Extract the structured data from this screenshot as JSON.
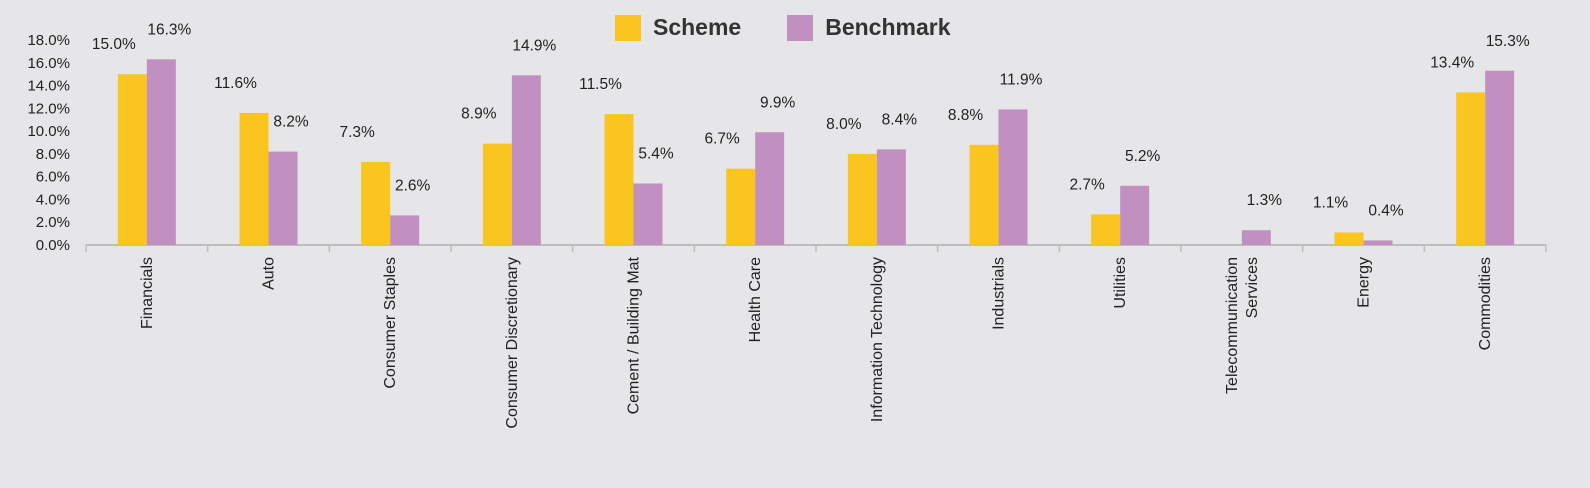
{
  "colors": {
    "background": "#e6e6e8",
    "scheme": "#fbc520",
    "benchmark": "#c18fc0",
    "axis": "#bdbdbd",
    "text": "#222222"
  },
  "legend": {
    "position": "top-center",
    "items": [
      {
        "label": "Scheme"
      },
      {
        "label": "Benchmark"
      }
    ]
  },
  "chart_data": {
    "type": "bar",
    "categories": [
      "Financials",
      "Auto",
      "Consumer Staples",
      "Consumer Discretionary",
      "Cement / Building Mat",
      "Health Care",
      "Information Technology",
      "Industrials",
      "Utilities",
      "Telecommunication Services",
      "Energy",
      "Commodities"
    ],
    "category_lines": [
      [
        "Financials"
      ],
      [
        "Auto"
      ],
      [
        "Consumer Staples"
      ],
      [
        "Consumer Discretionary"
      ],
      [
        "Cement / Building Mat"
      ],
      [
        "Health Care"
      ],
      [
        "Information Technology"
      ],
      [
        "Industrials"
      ],
      [
        "Utilities"
      ],
      [
        "Telecommunication",
        "Services"
      ],
      [
        "Energy"
      ],
      [
        "Commodities"
      ]
    ],
    "series": [
      {
        "name": "Scheme",
        "values": [
          15.0,
          11.6,
          7.3,
          8.9,
          11.5,
          6.7,
          8.0,
          8.8,
          2.7,
          null,
          1.1,
          13.4
        ],
        "labels": [
          "15.0%",
          "11.6%",
          "7.3%",
          "8.9%",
          "11.5%",
          "6.7%",
          "8.0%",
          "8.8%",
          "2.7%",
          "",
          "1.1%",
          "13.4%"
        ]
      },
      {
        "name": "Benchmark",
        "values": [
          16.3,
          8.2,
          2.6,
          14.9,
          5.4,
          9.9,
          8.4,
          11.9,
          5.2,
          1.3,
          0.4,
          15.3
        ],
        "labels": [
          "16.3%",
          "8.2%",
          "2.6%",
          "14.9%",
          "5.4%",
          "9.9%",
          "8.4%",
          "11.9%",
          "5.2%",
          "1.3%",
          "0.4%",
          "15.3%"
        ]
      }
    ],
    "ylim": [
      0,
      18
    ],
    "yticks": [
      0,
      2,
      4,
      6,
      8,
      10,
      12,
      14,
      16,
      18
    ],
    "ytick_labels": [
      "0.0%",
      "2.0%",
      "4.0%",
      "6.0%",
      "8.0%",
      "10.0%",
      "12.0%",
      "14.0%",
      "16.0%",
      "18.0%"
    ],
    "grid": false,
    "title": "",
    "xlabel": "",
    "ylabel": ""
  }
}
